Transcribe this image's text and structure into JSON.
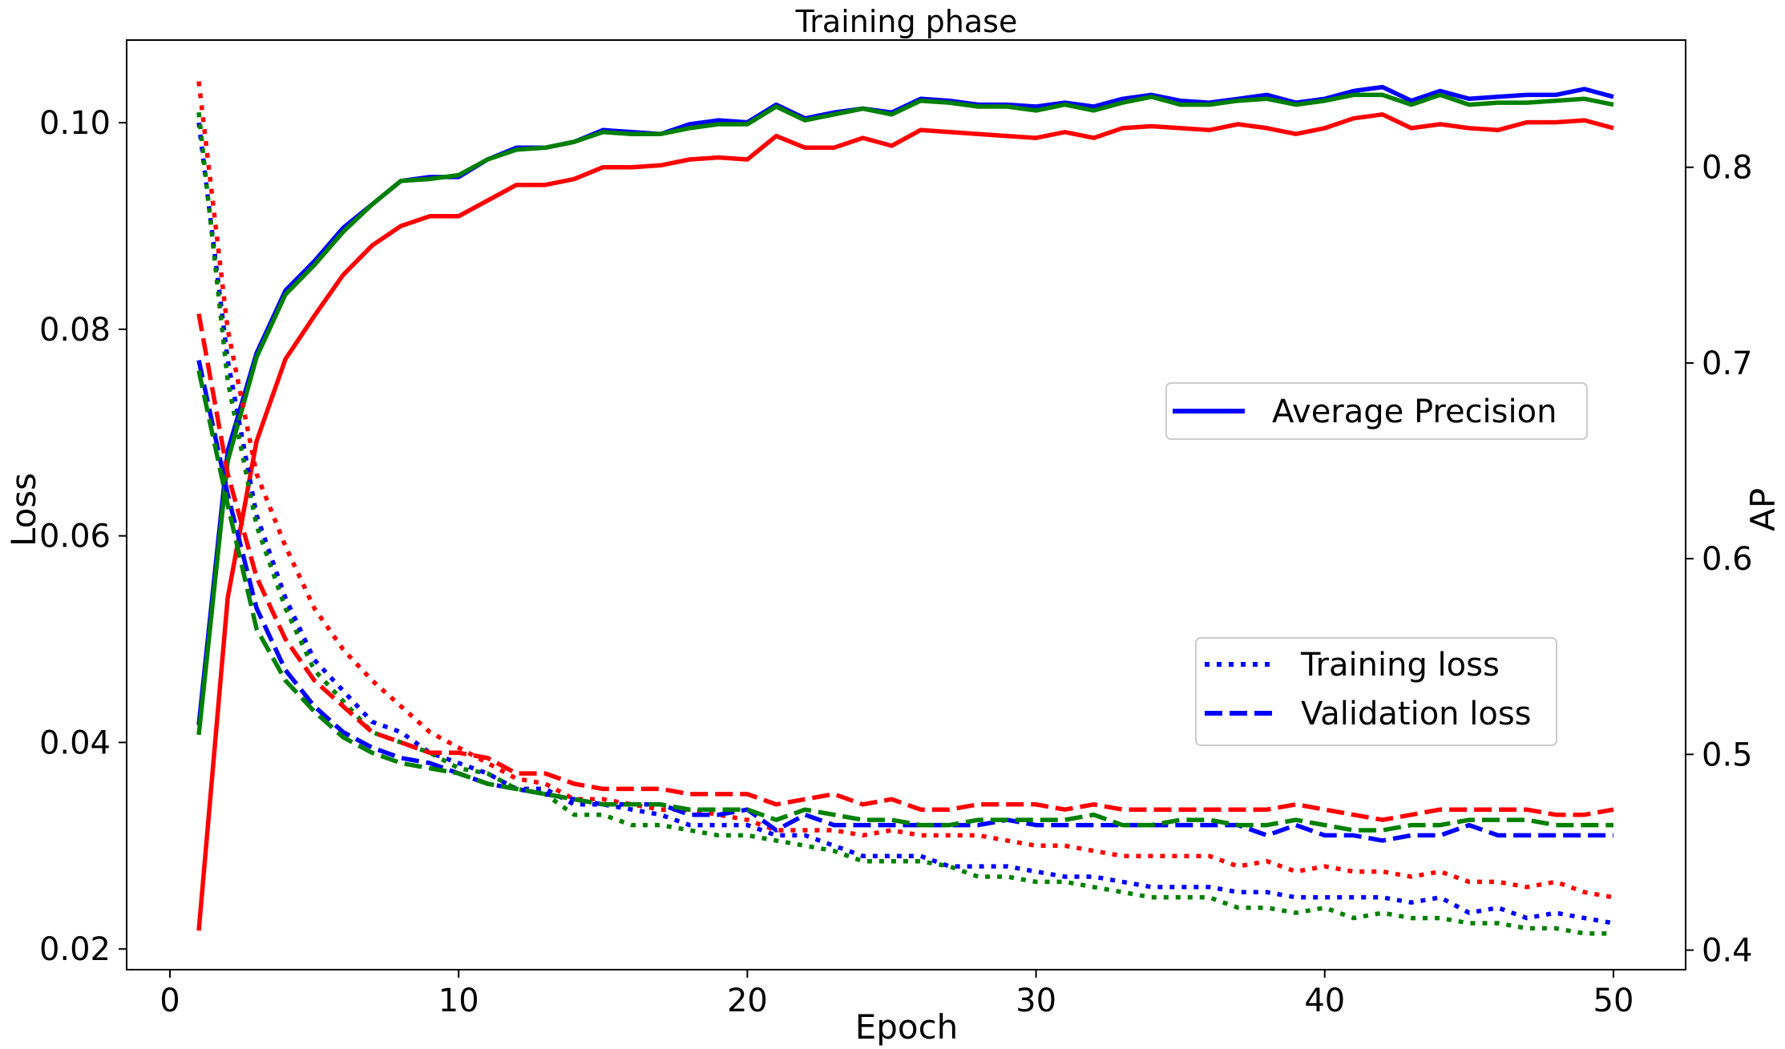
{
  "chart_data": {
    "type": "line",
    "title": "Training phase",
    "xlabel": "Epoch",
    "ylabel_left": "Loss",
    "ylabel_right": "AP",
    "xlim": [
      -1.5,
      52.5
    ],
    "ylim_left": [
      0.018,
      0.108
    ],
    "ylim_right": [
      0.39,
      0.865
    ],
    "xticks": [
      0,
      10,
      20,
      30,
      40,
      50
    ],
    "xtick_labels": [
      "0",
      "10",
      "20",
      "30",
      "40",
      "50"
    ],
    "yticks_left": [
      0.02,
      0.04,
      0.06,
      0.08,
      0.1
    ],
    "ytick_labels_left": [
      "0.02",
      "0.04",
      "0.06",
      "0.08",
      "0.10"
    ],
    "yticks_right": [
      0.4,
      0.5,
      0.6,
      0.7,
      0.8
    ],
    "ytick_labels_right": [
      "0.4",
      "0.5",
      "0.6",
      "0.7",
      "0.8"
    ],
    "grid": false,
    "legend_ap": {
      "placement": "right-middle",
      "label": "Average Precision",
      "color": "#0000ff"
    },
    "legend_loss": {
      "placement": "lower-right",
      "items": [
        {
          "label": "Training loss",
          "style": "dotted",
          "color": "#0000ff"
        },
        {
          "label": "Validation loss",
          "style": "dashed",
          "color": "#0000ff"
        }
      ]
    },
    "x": [
      1,
      2,
      3,
      4,
      5,
      6,
      7,
      8,
      9,
      10,
      11,
      12,
      13,
      14,
      15,
      16,
      17,
      18,
      19,
      20,
      21,
      22,
      23,
      24,
      25,
      26,
      27,
      28,
      29,
      30,
      31,
      32,
      33,
      34,
      35,
      36,
      37,
      38,
      39,
      40,
      41,
      42,
      43,
      44,
      45,
      46,
      47,
      48,
      49,
      50
    ],
    "series": [
      {
        "color": "#0000ff",
        "axis": "right",
        "style": "solid",
        "values": [
          0.515,
          0.655,
          0.705,
          0.737,
          0.752,
          0.769,
          0.781,
          0.793,
          0.795,
          0.795,
          0.804,
          0.81,
          0.81,
          0.813,
          0.819,
          0.818,
          0.817,
          0.822,
          0.824,
          0.823,
          0.832,
          0.825,
          0.828,
          0.83,
          0.828,
          0.835,
          0.834,
          0.832,
          0.832,
          0.831,
          0.833,
          0.831,
          0.835,
          0.837,
          0.834,
          0.833,
          0.835,
          0.837,
          0.833,
          0.835,
          0.839,
          0.841,
          0.834,
          0.839,
          0.835,
          0.836,
          0.837,
          0.837,
          0.84,
          0.836
        ]
      },
      {
        "color": "#008000",
        "axis": "right",
        "style": "solid",
        "values": [
          0.51,
          0.65,
          0.703,
          0.735,
          0.75,
          0.767,
          0.781,
          0.793,
          0.794,
          0.796,
          0.804,
          0.809,
          0.81,
          0.813,
          0.818,
          0.817,
          0.817,
          0.82,
          0.822,
          0.822,
          0.831,
          0.824,
          0.827,
          0.83,
          0.827,
          0.834,
          0.833,
          0.831,
          0.831,
          0.829,
          0.832,
          0.829,
          0.833,
          0.836,
          0.832,
          0.832,
          0.834,
          0.835,
          0.832,
          0.834,
          0.837,
          0.837,
          0.832,
          0.837,
          0.832,
          0.833,
          0.833,
          0.834,
          0.835,
          0.832
        ]
      },
      {
        "color": "#ff0000",
        "axis": "right",
        "style": "solid",
        "values": [
          0.41,
          0.58,
          0.66,
          0.702,
          0.724,
          0.745,
          0.76,
          0.77,
          0.775,
          0.775,
          0.783,
          0.791,
          0.791,
          0.794,
          0.8,
          0.8,
          0.801,
          0.804,
          0.805,
          0.804,
          0.816,
          0.81,
          0.81,
          0.815,
          0.811,
          0.819,
          0.818,
          0.817,
          0.816,
          0.815,
          0.818,
          0.815,
          0.82,
          0.821,
          0.82,
          0.819,
          0.822,
          0.82,
          0.817,
          0.82,
          0.825,
          0.827,
          0.82,
          0.822,
          0.82,
          0.819,
          0.823,
          0.823,
          0.824,
          0.82
        ]
      },
      {
        "color": "#0000ff",
        "axis": "left",
        "style": "dotted",
        "values": [
          0.1,
          0.077,
          0.062,
          0.054,
          0.048,
          0.045,
          0.042,
          0.041,
          0.039,
          0.038,
          0.037,
          0.0355,
          0.0355,
          0.034,
          0.034,
          0.0335,
          0.033,
          0.032,
          0.032,
          0.032,
          0.031,
          0.031,
          0.03,
          0.029,
          0.029,
          0.029,
          0.028,
          0.028,
          0.028,
          0.0275,
          0.027,
          0.027,
          0.0265,
          0.026,
          0.026,
          0.026,
          0.0255,
          0.0255,
          0.025,
          0.025,
          0.025,
          0.025,
          0.0245,
          0.025,
          0.0235,
          0.024,
          0.023,
          0.0235,
          0.023,
          0.0225
        ]
      },
      {
        "color": "#008000",
        "axis": "left",
        "style": "dotted",
        "values": [
          0.101,
          0.075,
          0.061,
          0.053,
          0.047,
          0.044,
          0.041,
          0.04,
          0.039,
          0.0375,
          0.037,
          0.0355,
          0.035,
          0.033,
          0.033,
          0.032,
          0.032,
          0.0315,
          0.031,
          0.031,
          0.0305,
          0.03,
          0.0295,
          0.0285,
          0.0285,
          0.0285,
          0.028,
          0.027,
          0.027,
          0.0265,
          0.0265,
          0.026,
          0.0255,
          0.025,
          0.025,
          0.025,
          0.024,
          0.024,
          0.0235,
          0.024,
          0.023,
          0.0235,
          0.023,
          0.023,
          0.0225,
          0.0225,
          0.022,
          0.022,
          0.0215,
          0.0215
        ]
      },
      {
        "color": "#ff0000",
        "axis": "left",
        "style": "dotted",
        "values": [
          0.104,
          0.08,
          0.066,
          0.059,
          0.053,
          0.049,
          0.046,
          0.0435,
          0.041,
          0.0395,
          0.038,
          0.0365,
          0.036,
          0.0345,
          0.0345,
          0.034,
          0.0335,
          0.0335,
          0.033,
          0.0325,
          0.0315,
          0.0315,
          0.0315,
          0.031,
          0.0315,
          0.031,
          0.031,
          0.031,
          0.0305,
          0.03,
          0.03,
          0.0295,
          0.029,
          0.029,
          0.029,
          0.029,
          0.028,
          0.0285,
          0.0275,
          0.028,
          0.0275,
          0.0275,
          0.027,
          0.0275,
          0.0265,
          0.0265,
          0.026,
          0.0265,
          0.0255,
          0.025
        ]
      },
      {
        "color": "#0000ff",
        "axis": "left",
        "style": "dashed",
        "values": [
          0.077,
          0.064,
          0.053,
          0.047,
          0.0435,
          0.041,
          0.0395,
          0.0385,
          0.038,
          0.037,
          0.036,
          0.0355,
          0.035,
          0.0345,
          0.034,
          0.034,
          0.034,
          0.033,
          0.033,
          0.0335,
          0.0315,
          0.033,
          0.032,
          0.032,
          0.032,
          0.032,
          0.032,
          0.032,
          0.0325,
          0.032,
          0.032,
          0.032,
          0.032,
          0.032,
          0.032,
          0.032,
          0.032,
          0.031,
          0.032,
          0.031,
          0.031,
          0.0305,
          0.031,
          0.031,
          0.032,
          0.031,
          0.031,
          0.031,
          0.031,
          0.031
        ]
      },
      {
        "color": "#008000",
        "axis": "left",
        "style": "dashed",
        "values": [
          0.076,
          0.063,
          0.051,
          0.046,
          0.043,
          0.0405,
          0.039,
          0.038,
          0.0375,
          0.037,
          0.036,
          0.0355,
          0.035,
          0.0345,
          0.034,
          0.034,
          0.034,
          0.0335,
          0.0335,
          0.0335,
          0.0325,
          0.0335,
          0.033,
          0.0325,
          0.0325,
          0.032,
          0.032,
          0.0325,
          0.0325,
          0.0325,
          0.0325,
          0.033,
          0.032,
          0.032,
          0.0325,
          0.0325,
          0.032,
          0.032,
          0.0325,
          0.032,
          0.0315,
          0.0315,
          0.032,
          0.032,
          0.0325,
          0.0325,
          0.0325,
          0.032,
          0.032,
          0.032
        ]
      },
      {
        "color": "#ff0000",
        "axis": "left",
        "style": "dashed",
        "values": [
          0.0815,
          0.066,
          0.056,
          0.05,
          0.046,
          0.0435,
          0.041,
          0.04,
          0.039,
          0.039,
          0.0385,
          0.037,
          0.037,
          0.036,
          0.0355,
          0.0355,
          0.0355,
          0.035,
          0.035,
          0.035,
          0.034,
          0.0345,
          0.035,
          0.034,
          0.0345,
          0.0335,
          0.0335,
          0.034,
          0.034,
          0.034,
          0.0335,
          0.034,
          0.0335,
          0.0335,
          0.0335,
          0.0335,
          0.0335,
          0.0335,
          0.034,
          0.0335,
          0.033,
          0.0325,
          0.033,
          0.0335,
          0.0335,
          0.0335,
          0.0335,
          0.033,
          0.033,
          0.0335
        ]
      }
    ]
  }
}
